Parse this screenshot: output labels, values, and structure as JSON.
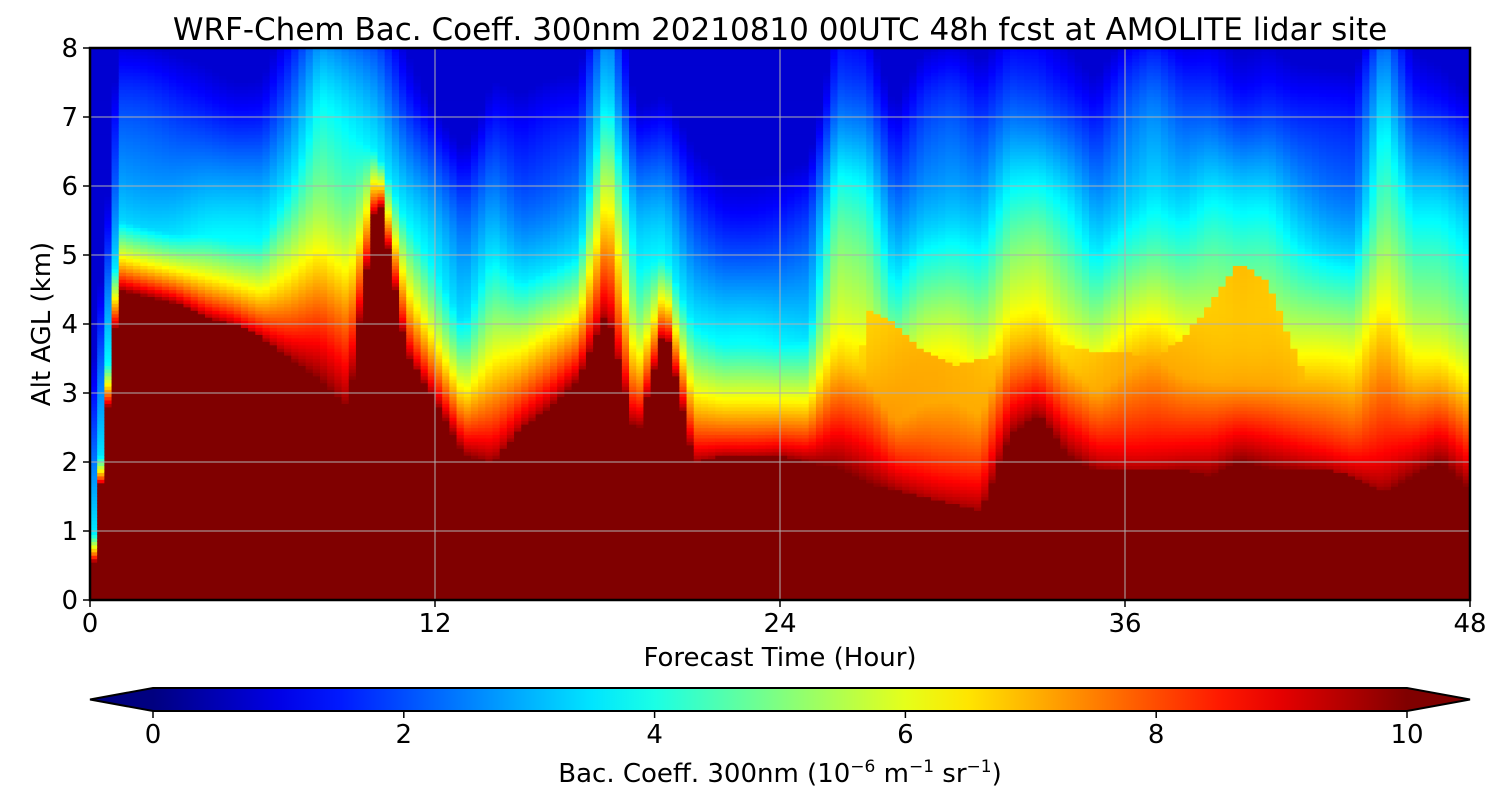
{
  "chart_data": {
    "type": "heatmap",
    "title": "WRF-Chem Bac. Coeff. 300nm  20210810 00UTC 48h fcst at AMOLITE lidar site",
    "xlabel": "Forecast Time (Hour)",
    "ylabel": "Alt AGL (km)",
    "xlim": [
      0,
      48
    ],
    "ylim": [
      0,
      8
    ],
    "x_ticks": [
      "0",
      "12",
      "24",
      "36",
      "48"
    ],
    "y_ticks": [
      "0",
      "1",
      "2",
      "3",
      "4",
      "5",
      "6",
      "7",
      "8"
    ],
    "grid": true,
    "colormap": "jet",
    "colorbar": {
      "label_prefix": "Bac. Coeff. 300nm  (10",
      "label_exp1": "−6",
      "label_mid": " m",
      "label_exp2": "−1",
      "label_mid2": " sr",
      "label_exp3": "−1",
      "label_suffix": ")",
      "range": [
        0,
        10
      ],
      "ticks": [
        "0",
        "2",
        "4",
        "6",
        "8",
        "10"
      ],
      "extend": "both",
      "orientation": "horizontal"
    },
    "x_hours": [
      0,
      1,
      2,
      3,
      4,
      5,
      6,
      7,
      8,
      9,
      10,
      11,
      12,
      13,
      14,
      15,
      16,
      17,
      18,
      19,
      20,
      21,
      22,
      23,
      24,
      25,
      26,
      27,
      28,
      29,
      30,
      31,
      32,
      33,
      34,
      35,
      36,
      37,
      38,
      39,
      40,
      41,
      42,
      43,
      44,
      45,
      46,
      47,
      48
    ],
    "saturated_top_km": [
      0.0,
      4.5,
      4.4,
      4.3,
      4.1,
      4.0,
      3.8,
      3.5,
      3.2,
      2.8,
      6.0,
      3.6,
      2.9,
      2.1,
      2.0,
      2.5,
      2.8,
      3.2,
      4.2,
      2.3,
      4.0,
      2.0,
      2.1,
      2.1,
      2.1,
      2.0,
      1.9,
      1.7,
      1.6,
      1.5,
      1.4,
      1.3,
      2.4,
      2.7,
      2.1,
      1.9,
      1.9,
      1.9,
      1.9,
      1.8,
      2.0,
      1.9,
      1.9,
      1.9,
      1.8,
      1.6,
      1.8,
      2.0,
      1.6
    ],
    "layer_top_km": [
      0.0,
      5.5,
      5.4,
      5.3,
      5.3,
      5.2,
      5.2,
      6.0,
      7.2,
      6.8,
      6.5,
      5.5,
      4.8,
      4.0,
      5.0,
      4.6,
      4.8,
      5.0,
      7.5,
      4.8,
      5.0,
      4.0,
      3.7,
      3.7,
      3.7,
      3.8,
      6.2,
      6.0,
      4.6,
      5.3,
      5.5,
      5.2,
      6.0,
      6.0,
      5.6,
      5.0,
      5.6,
      6.0,
      5.6,
      5.8,
      5.5,
      5.6,
      5.2,
      5.0,
      4.9,
      7.0,
      5.5,
      5.4,
      5.0
    ],
    "enhanced_top_km": [
      0.0,
      0.0,
      0.0,
      0.0,
      0.0,
      0.0,
      0.0,
      0.0,
      0.0,
      0.0,
      0.0,
      0.0,
      0.0,
      0.0,
      0.0,
      0.0,
      0.0,
      0.0,
      0.0,
      0.0,
      0.0,
      0.0,
      0.0,
      0.0,
      0.0,
      0.0,
      0.0,
      4.2,
      4.0,
      3.6,
      3.4,
      3.5,
      3.6,
      3.8,
      3.7,
      3.6,
      3.6,
      3.5,
      3.8,
      4.3,
      4.9,
      4.6,
      3.5,
      2.6,
      0.0,
      0.0,
      0.0,
      0.0,
      0.0
    ]
  }
}
